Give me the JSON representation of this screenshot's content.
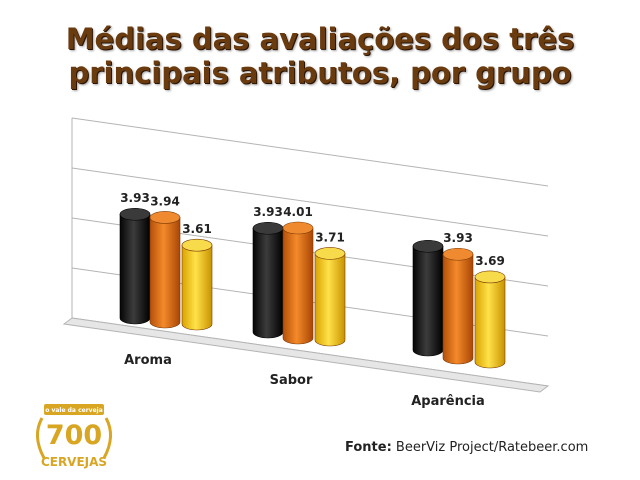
{
  "title": "Médias das avaliações dos três principais atributos, por grupo",
  "source": {
    "label": "Fonte:",
    "text": "BeerViz Project/Ratebeer.com"
  },
  "logo": {
    "banner": "o vale da cerveja",
    "number": "700",
    "word": "CERVEJAS"
  },
  "colors": {
    "series": [
      "#1e1e1e",
      "#e8700e",
      "#f2c418"
    ],
    "tops": [
      "#3a3a3a",
      "#f08a30",
      "#f7db4a"
    ],
    "title": "#6b3b10",
    "label": "#222222"
  },
  "chart_data": {
    "type": "bar",
    "categories": [
      "Aroma",
      "Sabor",
      "Aparência"
    ],
    "series": [
      {
        "values": [
          3.93,
          3.93,
          3.93
        ]
      },
      {
        "values": [
          3.94,
          4.01,
          3.93
        ]
      },
      {
        "values": [
          3.61,
          3.71,
          3.69
        ]
      }
    ],
    "data_labels": [
      [
        "3.93",
        "3.94",
        "3.61"
      ],
      [
        "3.93",
        "4.01",
        "3.71"
      ],
      [
        "",
        "3.93",
        "3.69"
      ]
    ],
    "grid": true,
    "legend": "none",
    "style": "3d-cylinder"
  }
}
